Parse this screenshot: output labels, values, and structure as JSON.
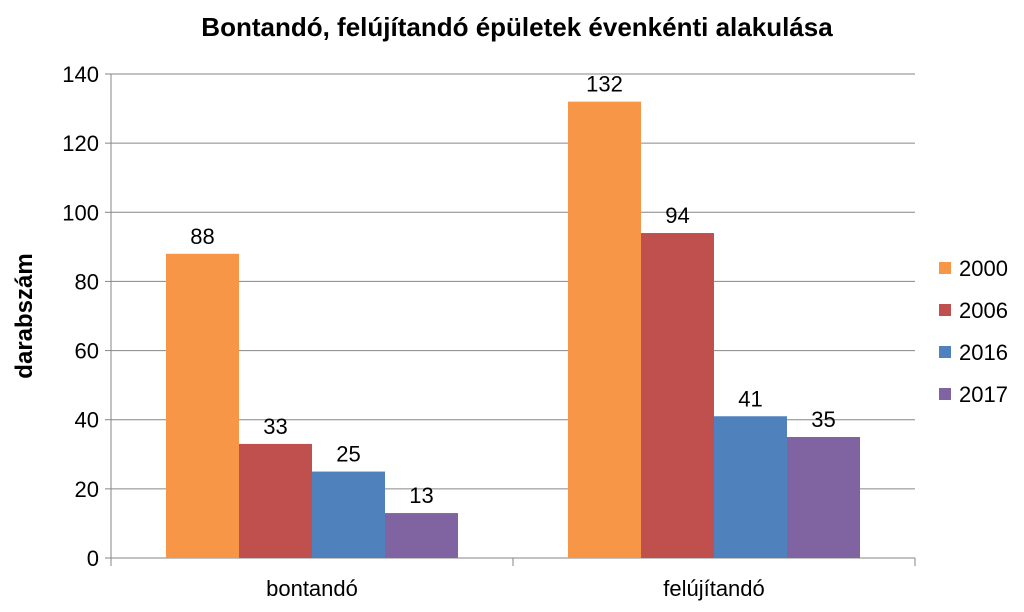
{
  "chart_data": {
    "type": "bar",
    "title": "Bontandó, felújítandó épületek évenkénti alakulása",
    "xlabel": "",
    "ylabel": "darabszám",
    "ylim": [
      0,
      140
    ],
    "yticks": [
      0,
      20,
      40,
      60,
      80,
      100,
      120,
      140
    ],
    "grid": true,
    "legend_position": "right",
    "categories": [
      "bontandó",
      "felújítandó"
    ],
    "series": [
      {
        "name": "2000",
        "color": "#F79646",
        "values": [
          88,
          132
        ]
      },
      {
        "name": "2006",
        "color": "#C0504D",
        "values": [
          33,
          94
        ]
      },
      {
        "name": "2016",
        "color": "#4F81BD",
        "values": [
          25,
          41
        ]
      },
      {
        "name": "2017",
        "color": "#8064A2",
        "values": [
          13,
          35
        ]
      }
    ]
  }
}
